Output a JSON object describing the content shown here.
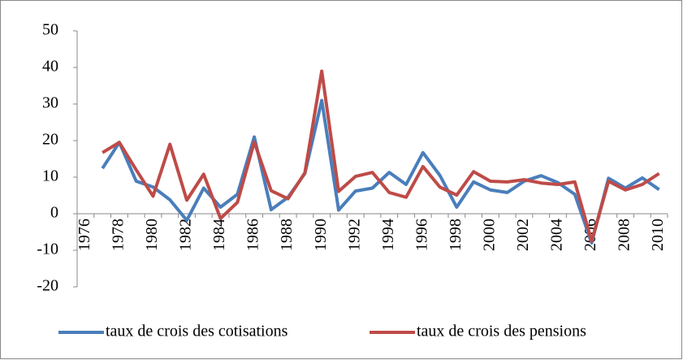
{
  "chart_data": {
    "type": "line",
    "categories": [
      "1976",
      null,
      "1978",
      null,
      "1980",
      null,
      "1982",
      null,
      "1984",
      null,
      "1986",
      null,
      "1988",
      null,
      "1990",
      null,
      "1992",
      null,
      "1994",
      null,
      "1996",
      null,
      "1998",
      null,
      "2000",
      null,
      "2002",
      null,
      "2004",
      null,
      "2006",
      null,
      "2008",
      null,
      "2010"
    ],
    "series": [
      {
        "name": "taux de crois des cotisations",
        "color": "#4a7ebb",
        "values": [
          null,
          12.4,
          19.5,
          8.9,
          7.3,
          3.8,
          -1.8,
          7,
          1.8,
          5.3,
          21,
          1.1,
          4.5,
          11,
          31,
          1,
          6.2,
          7,
          11.3,
          8,
          16.7,
          10.5,
          1.8,
          8.7,
          6.5,
          5.8,
          8.9,
          10.4,
          8.5,
          5.3,
          -8,
          9.7,
          7,
          9.8,
          6.6
        ]
      },
      {
        "name": "taux de crois des pensions",
        "color": "#be4b48",
        "values": [
          null,
          16.7,
          19.5,
          12,
          4.8,
          19,
          3.7,
          10.8,
          -1.3,
          3.1,
          19.6,
          6.3,
          4.1,
          11.2,
          39,
          6.1,
          10.2,
          11.3,
          5.8,
          4.5,
          12.9,
          7.3,
          5.1,
          11.5,
          8.9,
          8.7,
          9.3,
          8.4,
          8,
          8.7,
          -7.5,
          8.9,
          6.5,
          8,
          11
        ]
      }
    ],
    "ylim": [
      -20,
      50
    ],
    "yticks": [
      -20,
      -10,
      0,
      10,
      20,
      30,
      40,
      50
    ],
    "grid": false,
    "legend": "bottom"
  }
}
